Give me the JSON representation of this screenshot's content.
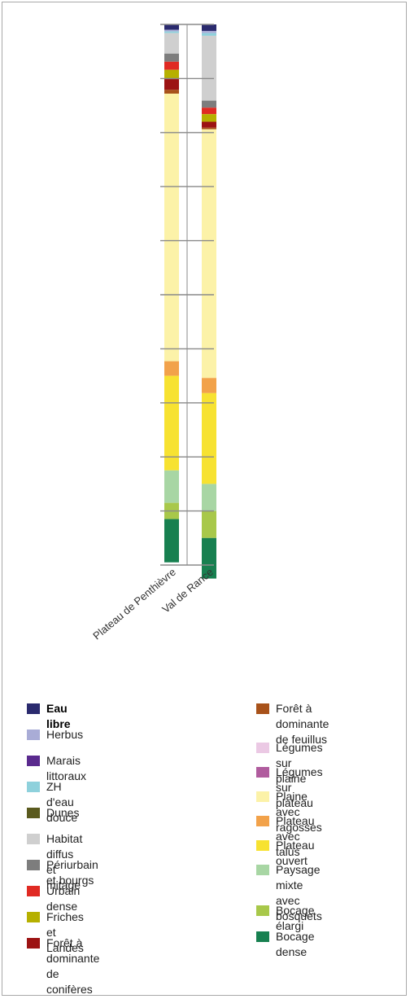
{
  "chart_data": {
    "type": "bar",
    "stacked": true,
    "orientation": "vertical",
    "categories": [
      "Plateau de Penthièvre",
      "Val de Rance"
    ],
    "ylim": [
      0,
      100
    ],
    "grid": false,
    "legend_position": "bottom",
    "series": [
      {
        "name": "Eau libre",
        "color": "#2a2a6e",
        "values": [
          1.0,
          1.2
        ]
      },
      {
        "name": "Herbus",
        "color": "#a9acd6",
        "values": [
          0.3,
          0.4
        ]
      },
      {
        "name": "Marais littoraux",
        "color": "#5a2a8e",
        "values": [
          0,
          0
        ]
      },
      {
        "name": "ZH d'eau douce",
        "color": "#8ed1dc",
        "values": [
          0.3,
          0.5
        ]
      },
      {
        "name": "Dunes",
        "color": "#5a5a1e",
        "values": [
          0,
          0
        ]
      },
      {
        "name": "Habitat diffus et mitage",
        "color": "#cfcfcf",
        "values": [
          3.8,
          12.0
        ]
      },
      {
        "name": "Périurbain et bourgs",
        "color": "#7d7d7d",
        "values": [
          1.5,
          1.3
        ]
      },
      {
        "name": "Urbain dense",
        "color": "#e02a23",
        "values": [
          1.5,
          1.2
        ]
      },
      {
        "name": "Friches et Landes",
        "color": "#b6b000",
        "values": [
          1.7,
          1.4
        ]
      },
      {
        "name": "Forêt à dominante de conifères",
        "color": "#9c1313",
        "values": [
          2.0,
          1.1
        ]
      },
      {
        "name": "Forêt à dominante de feuillus",
        "color": "#a8521a",
        "values": [
          0.7,
          0.3
        ]
      },
      {
        "name": "Légumes sur plaine",
        "color": "#ebc9e4",
        "values": [
          0,
          0
        ]
      },
      {
        "name": "Légumes sur plateau",
        "color": "#b05c9e",
        "values": [
          0,
          0
        ]
      },
      {
        "name": "Plaine avec ragosses",
        "color": "#fcf2a8",
        "values": [
          49.5,
          46.0
        ]
      },
      {
        "name": "Plateau avec talus",
        "color": "#f2a24a",
        "values": [
          2.7,
          2.8
        ]
      },
      {
        "name": "Plateau ouvert",
        "color": "#f7e231",
        "values": [
          17.5,
          16.8
        ]
      },
      {
        "name": "Paysage mixte avec bosquets",
        "color": "#a8d6a4",
        "values": [
          6.0,
          5.0
        ]
      },
      {
        "name": "Bocage élargi",
        "color": "#a8c84a",
        "values": [
          3.0,
          5.0
        ]
      },
      {
        "name": "Bocage dense",
        "color": "#178050",
        "values": [
          8.0,
          7.5
        ]
      }
    ]
  },
  "legend": {
    "left": [
      {
        "label": "Eau libre",
        "color": "#2a2a6e",
        "emphasized": true
      },
      {
        "label": "Herbus",
        "color": "#a9acd6"
      },
      {
        "label": "Marais littoraux",
        "color": "#5a2a8e"
      },
      {
        "label": "ZH d'eau douce",
        "color": "#8ed1dc"
      },
      {
        "label": "Dunes",
        "color": "#5a5a1e"
      },
      {
        "label": "Habitat diffus et mitage",
        "color": "#cfcfcf"
      },
      {
        "label": "Périurbain et bourgs",
        "color": "#7d7d7d"
      },
      {
        "label": "Urbain dense",
        "color": "#e02a23"
      },
      {
        "label": "Friches et Landes",
        "color": "#b6b000"
      },
      {
        "label": "Forêt à dominante\nde conifères",
        "color": "#9c1313"
      }
    ],
    "right": [
      {
        "label": "Forêt à dominante\nde feuillus",
        "color": "#a8521a"
      },
      {
        "label": "Légumes sur plaine",
        "color": "#ebc9e4"
      },
      {
        "label": "Légumes sur plateau",
        "color": "#b05c9e"
      },
      {
        "label": "Plaine avec ragosses",
        "color": "#fcf2a8"
      },
      {
        "label": "Plateau avec talus",
        "color": "#f2a24a"
      },
      {
        "label": "Plateau ouvert",
        "color": "#f7e231"
      },
      {
        "label": "Paysage mixte\navec bosquets",
        "color": "#a8d6a4"
      },
      {
        "label": "Bocage élargi",
        "color": "#a8c84a"
      },
      {
        "label": "Bocage dense",
        "color": "#178050"
      }
    ]
  }
}
